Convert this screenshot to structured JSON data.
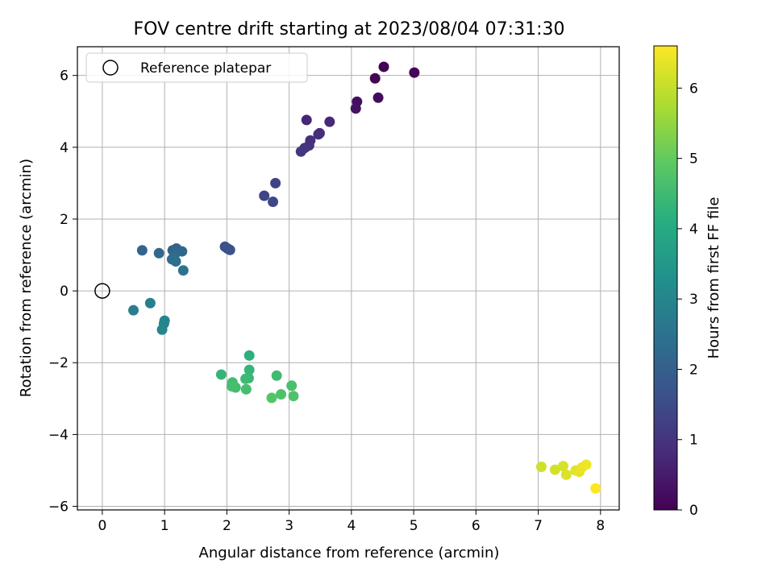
{
  "chart_data": {
    "type": "scatter",
    "title": "FOV centre drift starting at 2023/08/04 07:31:30",
    "xlabel": "Angular distance from reference (arcmin)",
    "ylabel": "Rotation from reference (arcmin)",
    "xlim": [
      -0.4,
      8.3
    ],
    "ylim": [
      -6.1,
      6.8
    ],
    "xticks": [
      0,
      1,
      2,
      3,
      4,
      5,
      6,
      7,
      8
    ],
    "yticks": [
      -6,
      -4,
      -2,
      0,
      2,
      4,
      6
    ],
    "xtick_labels": [
      "0",
      "1",
      "2",
      "3",
      "4",
      "5",
      "6",
      "7",
      "8"
    ],
    "ytick_labels": [
      "−6",
      "−4",
      "−2",
      "0",
      "2",
      "4",
      "6"
    ],
    "grid": true,
    "legend": {
      "position": "top-left",
      "entries": [
        "Reference platepar"
      ]
    },
    "reference_point": {
      "x": 0,
      "y": 0
    },
    "colorbar": {
      "label": "Hours from first FF file",
      "range": [
        0,
        6.6
      ],
      "ticks": [
        0,
        1,
        2,
        3,
        4,
        5,
        6
      ],
      "tick_labels": [
        "0",
        "1",
        "2",
        "3",
        "4",
        "5",
        "6"
      ],
      "colormap": "viridis"
    },
    "points": [
      {
        "x": 4.52,
        "y": 6.24,
        "h": 0.0
      },
      {
        "x": 4.38,
        "y": 5.92,
        "h": 0.05
      },
      {
        "x": 5.01,
        "y": 6.08,
        "h": 0.1
      },
      {
        "x": 4.43,
        "y": 5.38,
        "h": 0.2
      },
      {
        "x": 4.09,
        "y": 5.27,
        "h": 0.25
      },
      {
        "x": 4.07,
        "y": 5.08,
        "h": 0.3
      },
      {
        "x": 3.28,
        "y": 4.76,
        "h": 0.7
      },
      {
        "x": 3.65,
        "y": 4.71,
        "h": 0.75
      },
      {
        "x": 3.49,
        "y": 4.39,
        "h": 0.8
      },
      {
        "x": 3.47,
        "y": 4.36,
        "h": 0.85
      },
      {
        "x": 3.34,
        "y": 4.19,
        "h": 0.9
      },
      {
        "x": 3.32,
        "y": 4.05,
        "h": 0.95
      },
      {
        "x": 3.25,
        "y": 3.98,
        "h": 1.0
      },
      {
        "x": 3.19,
        "y": 3.88,
        "h": 1.05
      },
      {
        "x": 2.78,
        "y": 3.0,
        "h": 1.3
      },
      {
        "x": 2.6,
        "y": 2.65,
        "h": 1.35
      },
      {
        "x": 2.74,
        "y": 2.48,
        "h": 1.4
      },
      {
        "x": 1.97,
        "y": 1.23,
        "h": 1.6
      },
      {
        "x": 2.01,
        "y": 1.18,
        "h": 1.65
      },
      {
        "x": 2.05,
        "y": 1.14,
        "h": 1.7
      },
      {
        "x": 1.19,
        "y": 1.18,
        "h": 2.05
      },
      {
        "x": 1.13,
        "y": 1.13,
        "h": 2.1
      },
      {
        "x": 0.64,
        "y": 1.13,
        "h": 2.15
      },
      {
        "x": 1.28,
        "y": 1.1,
        "h": 2.2
      },
      {
        "x": 0.91,
        "y": 1.05,
        "h": 2.25
      },
      {
        "x": 1.16,
        "y": 1.0,
        "h": 2.3
      },
      {
        "x": 1.12,
        "y": 0.88,
        "h": 2.35
      },
      {
        "x": 1.18,
        "y": 0.82,
        "h": 2.4
      },
      {
        "x": 1.3,
        "y": 0.57,
        "h": 2.5
      },
      {
        "x": 0.5,
        "y": -0.54,
        "h": 2.8
      },
      {
        "x": 0.77,
        "y": -0.34,
        "h": 2.85
      },
      {
        "x": 1.0,
        "y": -0.83,
        "h": 2.9
      },
      {
        "x": 0.99,
        "y": -0.91,
        "h": 2.95
      },
      {
        "x": 0.96,
        "y": -1.08,
        "h": 3.0
      },
      {
        "x": 2.36,
        "y": -1.8,
        "h": 4.2
      },
      {
        "x": 1.91,
        "y": -2.33,
        "h": 4.3
      },
      {
        "x": 2.36,
        "y": -2.2,
        "h": 4.35
      },
      {
        "x": 2.35,
        "y": -2.43,
        "h": 4.4
      },
      {
        "x": 2.3,
        "y": -2.45,
        "h": 4.45
      },
      {
        "x": 2.8,
        "y": -2.36,
        "h": 4.5
      },
      {
        "x": 2.09,
        "y": -2.55,
        "h": 4.5
      },
      {
        "x": 2.1,
        "y": -2.64,
        "h": 4.55
      },
      {
        "x": 2.14,
        "y": -2.69,
        "h": 4.55
      },
      {
        "x": 2.08,
        "y": -2.66,
        "h": 4.6
      },
      {
        "x": 2.31,
        "y": -2.74,
        "h": 4.6
      },
      {
        "x": 3.04,
        "y": -2.64,
        "h": 4.65
      },
      {
        "x": 2.87,
        "y": -2.88,
        "h": 4.7
      },
      {
        "x": 3.07,
        "y": -2.93,
        "h": 4.75
      },
      {
        "x": 2.72,
        "y": -2.98,
        "h": 4.8
      },
      {
        "x": 7.05,
        "y": -4.9,
        "h": 6.1
      },
      {
        "x": 7.27,
        "y": -4.98,
        "h": 6.15
      },
      {
        "x": 7.4,
        "y": -4.88,
        "h": 6.2
      },
      {
        "x": 7.45,
        "y": -5.12,
        "h": 6.25
      },
      {
        "x": 7.6,
        "y": -5.0,
        "h": 6.3
      },
      {
        "x": 7.66,
        "y": -5.04,
        "h": 6.35
      },
      {
        "x": 7.7,
        "y": -4.92,
        "h": 6.4
      },
      {
        "x": 7.77,
        "y": -4.84,
        "h": 6.45
      },
      {
        "x": 7.92,
        "y": -5.5,
        "h": 6.6
      }
    ]
  }
}
